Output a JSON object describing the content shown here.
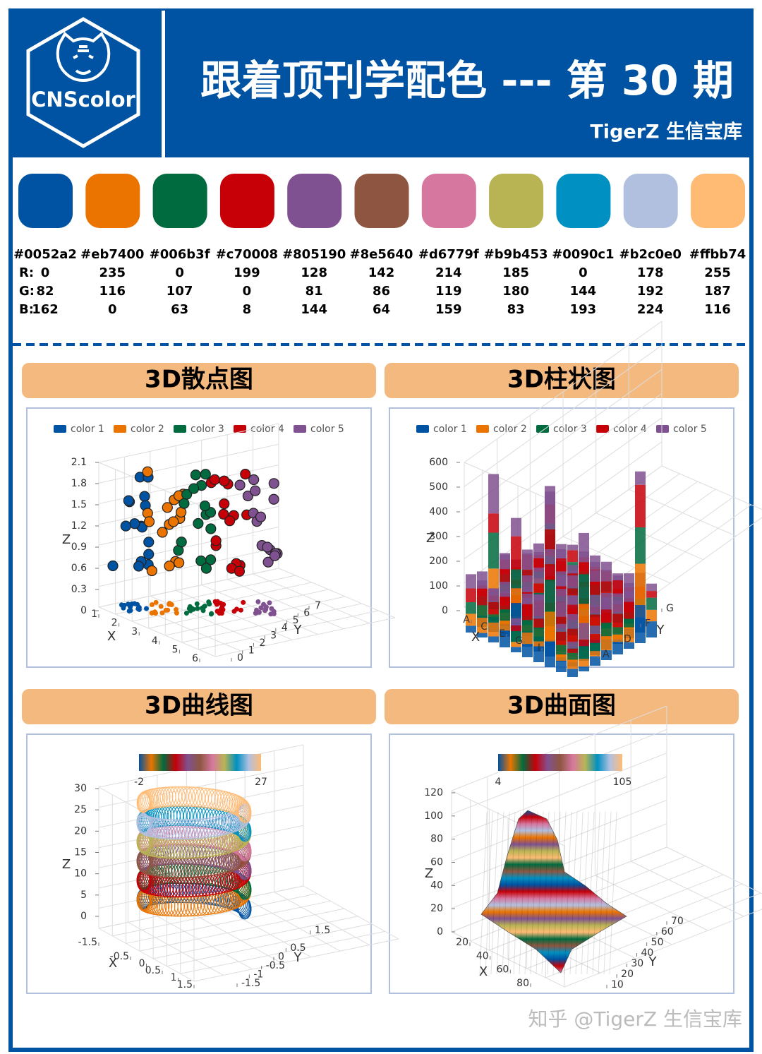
{
  "header": {
    "logo": "CNScolor",
    "title": "跟着顶刊学配色 --- 第 30 期",
    "subtitle": "TigerZ 生信宝库"
  },
  "palette": {
    "row_labels": [
      "R:",
      "G:",
      "B:"
    ],
    "colors": [
      {
        "hex": "#0052a2",
        "r": 0,
        "g": 82,
        "b": 162
      },
      {
        "hex": "#eb7400",
        "r": 235,
        "g": 116,
        "b": 0
      },
      {
        "hex": "#006b3f",
        "r": 0,
        "g": 107,
        "b": 63
      },
      {
        "hex": "#c70008",
        "r": 199,
        "g": 0,
        "b": 8
      },
      {
        "hex": "#805190",
        "r": 128,
        "g": 81,
        "b": 144
      },
      {
        "hex": "#8e5640",
        "r": 142,
        "g": 86,
        "b": 64
      },
      {
        "hex": "#d6779f",
        "r": 214,
        "g": 119,
        "b": 159
      },
      {
        "hex": "#b9b453",
        "r": 185,
        "g": 180,
        "b": 83
      },
      {
        "hex": "#0090c1",
        "r": 0,
        "g": 144,
        "b": 193
      },
      {
        "hex": "#b2c0e0",
        "r": 178,
        "g": 192,
        "b": 224
      },
      {
        "hex": "#ffbb74",
        "r": 255,
        "g": 187,
        "b": 116
      }
    ]
  },
  "panels": [
    {
      "title": "3D散点图",
      "legend": [
        "color 1",
        "color 2",
        "color 3",
        "color 4",
        "color 5"
      ],
      "axes": {
        "x": {
          "title": "X",
          "ticks": [
            1,
            2,
            3,
            4,
            5,
            6
          ]
        },
        "y": {
          "title": "Y",
          "ticks": [
            0,
            1,
            2,
            3,
            4,
            5,
            6,
            7
          ]
        },
        "z": {
          "title": "Z",
          "ticks": [
            0,
            0.3,
            0.6,
            0.9,
            1.2,
            1.5,
            1.8,
            2.1
          ]
        }
      }
    },
    {
      "title": "3D柱状图",
      "legend": [
        "color 1",
        "color 2",
        "color 3",
        "color 4",
        "color 5"
      ],
      "axes": {
        "x": {
          "title": "X",
          "ticks": [
            "A",
            "C",
            "E",
            "G",
            "I"
          ]
        },
        "y": {
          "title": "Y",
          "ticks": [
            "A",
            "D",
            "F",
            "G"
          ]
        },
        "z": {
          "title": "Z",
          "ticks": [
            0,
            100,
            200,
            300,
            400,
            500,
            600
          ]
        }
      }
    },
    {
      "title": "3D曲线图",
      "colorbar": {
        "min": -2,
        "max": 27
      },
      "axes": {
        "x": {
          "title": "X",
          "ticks": [
            -1.5,
            -0.5,
            0,
            0.5,
            1,
            1.5
          ]
        },
        "y": {
          "title": "Y",
          "ticks": [
            -1.5,
            -1,
            -0.5,
            0,
            0.5,
            1.5
          ]
        },
        "z": {
          "title": "Z",
          "ticks": [
            0,
            5,
            10,
            15,
            20,
            25,
            30
          ]
        }
      }
    },
    {
      "title": "3D曲面图",
      "colorbar": {
        "min": 4,
        "max": 105
      },
      "axes": {
        "x": {
          "title": "X",
          "ticks": [
            20,
            40,
            60,
            80
          ]
        },
        "y": {
          "title": "Y",
          "ticks": [
            10,
            20,
            30,
            40,
            50,
            60,
            70
          ]
        },
        "z": {
          "title": "Z",
          "ticks": [
            0,
            20,
            40,
            60,
            80,
            100,
            120
          ]
        }
      }
    }
  ],
  "watermark": "知乎 @TigerZ 生信宝库"
}
